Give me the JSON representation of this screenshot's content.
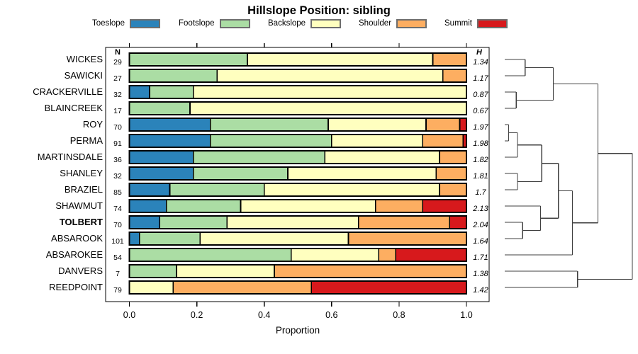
{
  "title": "Hillslope Position: sibling",
  "columns": {
    "n_header": "N",
    "h_header": "H"
  },
  "legend": [
    {
      "label": "Toeslope",
      "color": "#2B83BA"
    },
    {
      "label": "Footslope",
      "color": "#ABDDA4"
    },
    {
      "label": "Backslope",
      "color": "#FFFFBF"
    },
    {
      "label": "Shoulder",
      "color": "#FDAE61"
    },
    {
      "label": "Summit",
      "color": "#D7191C"
    }
  ],
  "chart_data": {
    "type": "bar",
    "stacked": true,
    "orientation": "horizontal",
    "title": "Hillslope Position: sibling",
    "xlabel": "Proportion",
    "xlim": [
      0,
      1
    ],
    "xticks": [
      0.0,
      0.2,
      0.4,
      0.6,
      0.8,
      1.0
    ],
    "xtick_labels": [
      "0.0",
      "0.2",
      "0.4",
      "0.6",
      "0.8",
      "1.0"
    ],
    "grid": false,
    "series_labels": [
      "Toeslope",
      "Footslope",
      "Backslope",
      "Shoulder",
      "Summit"
    ],
    "series_colors": [
      "#2B83BA",
      "#ABDDA4",
      "#FFFFBF",
      "#FDAE61",
      "#D7191C"
    ],
    "rows": [
      {
        "name": "WICKES",
        "n": "29",
        "h": "1.34",
        "bold": false,
        "values": [
          0,
          0.35,
          0.55,
          0.1,
          0
        ]
      },
      {
        "name": "SAWICKI",
        "n": "27",
        "h": "1.17",
        "bold": false,
        "values": [
          0,
          0.26,
          0.67,
          0.07,
          0
        ]
      },
      {
        "name": "CRACKERVILLE",
        "n": "32",
        "h": "0.87",
        "bold": false,
        "values": [
          0.06,
          0.13,
          0.81,
          0,
          0
        ]
      },
      {
        "name": "BLAINCREEK",
        "n": "17",
        "h": "0.67",
        "bold": false,
        "values": [
          0,
          0.18,
          0.82,
          0,
          0
        ]
      },
      {
        "name": "ROY",
        "n": "70",
        "h": "1.97",
        "bold": false,
        "values": [
          0.24,
          0.35,
          0.29,
          0.1,
          0.02
        ]
      },
      {
        "name": "PERMA",
        "n": "91",
        "h": "1.98",
        "bold": false,
        "values": [
          0.24,
          0.36,
          0.27,
          0.12,
          0.01
        ]
      },
      {
        "name": "MARTINSDALE",
        "n": "36",
        "h": "1.82",
        "bold": false,
        "values": [
          0.19,
          0.39,
          0.34,
          0.08,
          0
        ]
      },
      {
        "name": "SHANLEY",
        "n": "32",
        "h": "1.81",
        "bold": false,
        "values": [
          0.19,
          0.28,
          0.44,
          0.09,
          0
        ]
      },
      {
        "name": "BRAZIEL",
        "n": "85",
        "h": "1.7",
        "bold": false,
        "values": [
          0.12,
          0.28,
          0.52,
          0.08,
          0
        ]
      },
      {
        "name": "SHAWMUT",
        "n": "74",
        "h": "2.13",
        "bold": false,
        "values": [
          0.11,
          0.22,
          0.4,
          0.14,
          0.13
        ]
      },
      {
        "name": "TOLBERT",
        "n": "70",
        "h": "2.04",
        "bold": true,
        "values": [
          0.09,
          0.2,
          0.39,
          0.27,
          0.05
        ]
      },
      {
        "name": "ABSAROOK",
        "n": "101",
        "h": "1.64",
        "bold": false,
        "values": [
          0.03,
          0.18,
          0.44,
          0.35,
          0
        ]
      },
      {
        "name": "ABSAROKEE",
        "n": "54",
        "h": "1.71",
        "bold": false,
        "values": [
          0,
          0.48,
          0.26,
          0.05,
          0.21
        ]
      },
      {
        "name": "DANVERS",
        "n": "7",
        "h": "1.38",
        "bold": false,
        "values": [
          0,
          0.14,
          0.29,
          0.57,
          0
        ]
      },
      {
        "name": "REEDPOINT",
        "n": "79",
        "h": "1.42",
        "bold": false,
        "values": [
          0,
          0,
          0.13,
          0.41,
          0.46
        ]
      }
    ],
    "dendrogram": {
      "note": "right-side cluster tree; leaves are the 15 rows top to bottom; height 0=leaf edge, 1=root",
      "merges": [
        {
          "id": "M1",
          "children": [
            "L0",
            "L1"
          ],
          "height": 0.16
        },
        {
          "id": "M2",
          "children": [
            "L2",
            "L3"
          ],
          "height": 0.09
        },
        {
          "id": "M3",
          "children": [
            "M1",
            "M2"
          ],
          "height": 0.38
        },
        {
          "id": "M4",
          "children": [
            "L4",
            "L5"
          ],
          "height": 0.03
        },
        {
          "id": "M5",
          "children": [
            "M4",
            "L6"
          ],
          "height": 0.1
        },
        {
          "id": "M6",
          "children": [
            "L7",
            "L8"
          ],
          "height": 0.1
        },
        {
          "id": "M7",
          "children": [
            "M5",
            "M6"
          ],
          "height": 0.29
        },
        {
          "id": "M8",
          "children": [
            "L10",
            "L11"
          ],
          "height": 0.14
        },
        {
          "id": "M9",
          "children": [
            "L9",
            "M8"
          ],
          "height": 0.28
        },
        {
          "id": "M10",
          "children": [
            "M7",
            "M9"
          ],
          "height": 0.42
        },
        {
          "id": "M11",
          "children": [
            "M10",
            "L12"
          ],
          "height": 0.53
        },
        {
          "id": "M12",
          "children": [
            "M3",
            "M11"
          ],
          "height": 0.73
        },
        {
          "id": "M13",
          "children": [
            "L13",
            "L14"
          ],
          "height": 0.57
        },
        {
          "id": "M14",
          "children": [
            "M12",
            "M13"
          ],
          "height": 1.0
        }
      ]
    }
  }
}
